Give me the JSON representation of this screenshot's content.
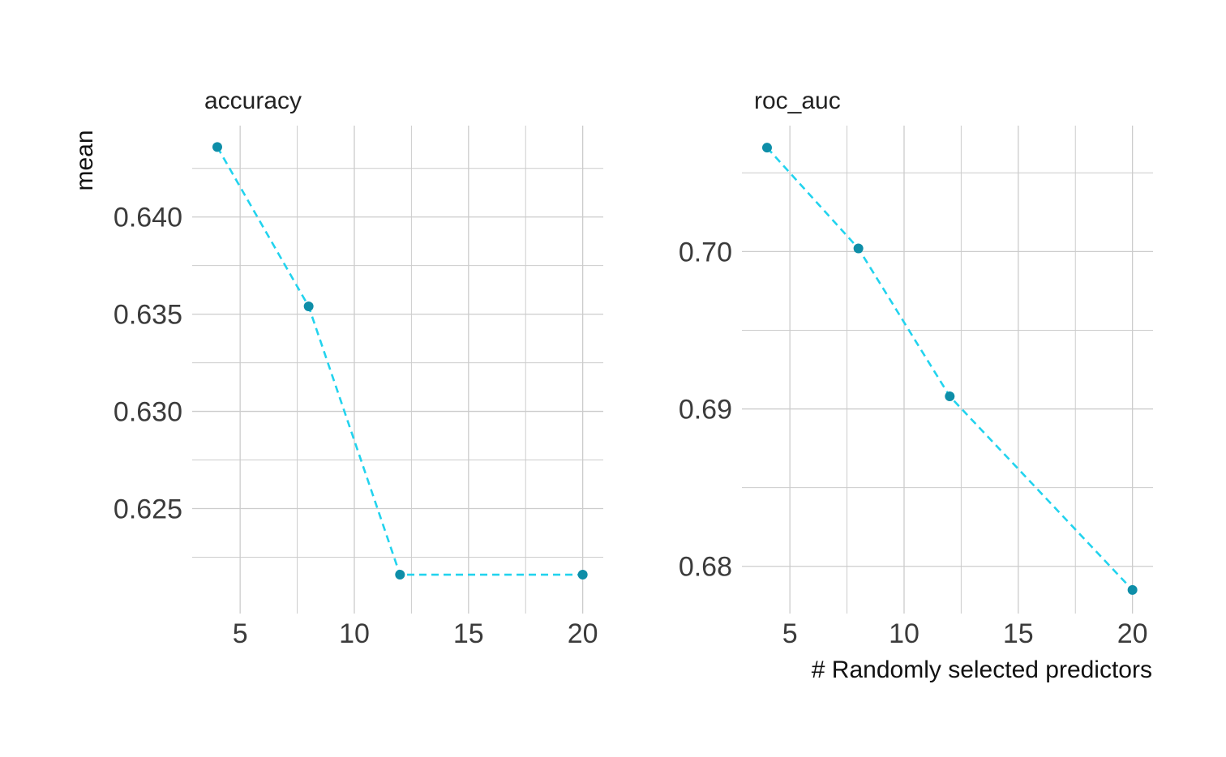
{
  "ylabel": "mean",
  "xlabel": "# Randomly selected predictors",
  "colors": {
    "line": "#22d3ee",
    "point": "#0e8ea8",
    "grid": "#cccccc"
  },
  "chart_data": [
    {
      "type": "line",
      "title": "accuracy",
      "x": [
        4,
        8,
        12,
        20
      ],
      "y": [
        0.6436,
        0.6354,
        0.6216,
        0.6216
      ],
      "xlim": [
        2.9,
        20.9
      ],
      "ylim": [
        0.6196,
        0.6447
      ],
      "x_major_ticks": [
        5,
        10,
        15,
        20
      ],
      "x_tick_labels": [
        "5",
        "10",
        "15",
        "20"
      ],
      "x_minor_ticks": [
        7.5,
        12.5,
        17.5
      ],
      "y_major_ticks": [
        0.625,
        0.63,
        0.635,
        0.64
      ],
      "y_tick_labels": [
        "0.625",
        "0.630",
        "0.635",
        "0.640"
      ],
      "y_minor_ticks": [
        0.6225,
        0.6275,
        0.6325,
        0.6375,
        0.6425
      ],
      "line_style": "dashed",
      "grid": true,
      "legend": "none"
    },
    {
      "type": "line",
      "title": "roc_auc",
      "x": [
        4,
        8,
        12,
        20
      ],
      "y": [
        0.7066,
        0.7002,
        0.6908,
        0.6785
      ],
      "xlim": [
        2.9,
        20.9
      ],
      "ylim": [
        0.677,
        0.708
      ],
      "x_major_ticks": [
        5,
        10,
        15,
        20
      ],
      "x_tick_labels": [
        "5",
        "10",
        "15",
        "20"
      ],
      "x_minor_ticks": [
        7.5,
        12.5,
        17.5
      ],
      "y_major_ticks": [
        0.68,
        0.69,
        0.7
      ],
      "y_tick_labels": [
        "0.68",
        "0.69",
        "0.70"
      ],
      "y_minor_ticks": [
        0.685,
        0.695,
        0.705
      ],
      "line_style": "dashed",
      "grid": true,
      "legend": "none"
    }
  ]
}
